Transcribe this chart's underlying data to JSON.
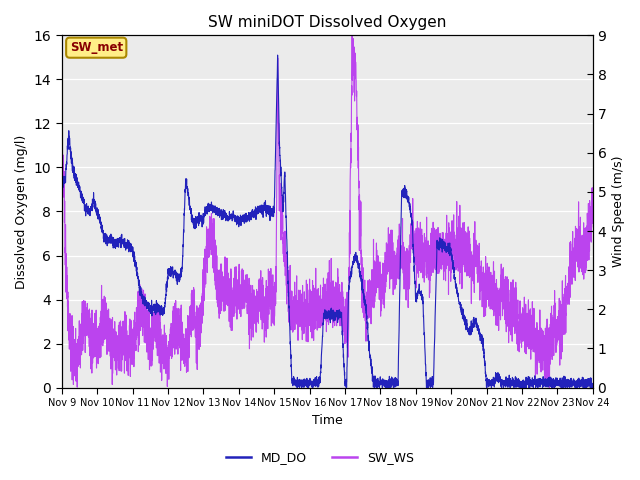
{
  "title": "SW miniDOT Dissolved Oxygen",
  "ylabel_left": "Dissolved Oxygen (mg/l)",
  "ylabel_right": "Wind Speed (m/s)",
  "xlabel": "Time",
  "ylim_left": [
    0,
    16
  ],
  "ylim_right": [
    0.0,
    9.0
  ],
  "yticks_left": [
    0,
    2,
    4,
    6,
    8,
    10,
    12,
    14,
    16
  ],
  "yticks_right": [
    0.0,
    1.0,
    2.0,
    3.0,
    4.0,
    5.0,
    6.0,
    7.0,
    8.0,
    9.0
  ],
  "xtick_labels": [
    "Nov 9",
    "Nov 10",
    "Nov 11",
    "Nov 12",
    "Nov 13",
    "Nov 14",
    "Nov 15",
    "Nov 16",
    "Nov 17",
    "Nov 18",
    "Nov 19",
    "Nov 20",
    "Nov 21",
    "Nov 22",
    "Nov 23",
    "Nov 24"
  ],
  "legend_label_left": "MD_DO",
  "legend_label_right": "SW_WS",
  "annotation_text": "SW_met",
  "color_do": "#2222bb",
  "color_ws": "#bb44ee",
  "bg_color": "#ebebeb",
  "annotation_bg": "#ffee88",
  "annotation_fg": "#880000",
  "figsize": [
    6.4,
    4.8
  ],
  "dpi": 100,
  "do_xp": [
    0,
    0.05,
    0.1,
    0.15,
    0.2,
    0.3,
    0.4,
    0.5,
    0.6,
    0.7,
    0.8,
    0.9,
    1.0,
    1.1,
    1.2,
    1.3,
    1.4,
    1.5,
    1.6,
    1.7,
    1.8,
    1.9,
    2.0,
    2.1,
    2.2,
    2.3,
    2.4,
    2.5,
    2.6,
    2.7,
    2.8,
    2.9,
    3.0,
    3.1,
    3.2,
    3.3,
    3.4,
    3.5,
    3.6,
    3.7,
    3.8,
    3.9,
    4.0,
    4.05,
    4.1,
    4.2,
    4.3,
    4.4,
    4.5,
    4.6,
    4.7,
    4.8,
    4.9,
    5.0,
    5.1,
    5.2,
    5.3,
    5.4,
    5.5,
    5.6,
    5.7,
    5.8,
    5.9,
    6.0,
    6.05,
    6.1,
    6.15,
    6.2,
    6.25,
    6.3,
    6.4,
    6.5,
    6.6,
    6.7,
    6.8,
    6.9,
    7.0,
    7.05,
    7.1,
    7.15,
    7.2,
    7.3,
    7.4,
    7.5,
    7.6,
    7.7,
    7.8,
    7.9,
    8.0,
    8.05,
    8.1,
    8.2,
    8.3,
    8.4,
    8.5,
    8.6,
    8.7,
    8.8,
    8.9,
    9.0,
    9.05,
    9.1,
    9.2,
    9.3,
    9.4,
    9.5,
    9.6,
    9.7,
    9.8,
    9.9,
    10.0,
    10.1,
    10.2,
    10.3,
    10.4,
    10.5,
    10.6,
    10.7,
    10.8,
    10.9,
    11.0,
    11.1,
    11.2,
    11.3,
    11.4,
    11.5,
    11.6,
    11.7,
    11.8,
    11.9,
    12.0,
    12.1,
    12.2,
    12.3,
    12.4,
    12.5,
    12.6,
    12.7,
    12.8,
    12.9,
    13.0,
    13.1,
    13.2,
    13.3,
    13.4,
    13.5,
    13.6,
    13.7,
    13.8,
    13.9,
    14.0,
    14.1,
    14.2,
    14.3,
    14.4,
    14.5,
    14.6,
    14.7,
    14.8,
    14.9,
    15.0
  ],
  "do_yp": [
    9.0,
    9.3,
    9.5,
    10.5,
    11.5,
    10.0,
    9.5,
    9.0,
    8.5,
    8.1,
    8.0,
    8.5,
    8.0,
    7.5,
    6.8,
    6.7,
    6.8,
    6.5,
    6.6,
    6.7,
    6.5,
    6.5,
    6.2,
    5.5,
    4.5,
    4.0,
    3.8,
    3.5,
    3.6,
    3.7,
    3.5,
    3.5,
    5.2,
    5.3,
    5.2,
    5.0,
    5.3,
    9.5,
    8.5,
    7.5,
    7.5,
    7.7,
    7.6,
    8.0,
    8.1,
    8.2,
    8.1,
    8.0,
    7.9,
    7.8,
    7.7,
    7.8,
    7.7,
    7.5,
    7.6,
    7.7,
    7.8,
    7.9,
    8.0,
    8.1,
    8.2,
    8.1,
    8.0,
    8.0,
    11.5,
    15.2,
    11.0,
    9.5,
    8.0,
    9.8,
    4.5,
    0.3,
    0.2,
    0.2,
    0.2,
    0.2,
    0.2,
    0.2,
    0.2,
    0.2,
    0.2,
    0.3,
    3.3,
    3.3,
    3.3,
    3.3,
    3.3,
    3.3,
    0.2,
    0.2,
    4.5,
    5.5,
    6.0,
    5.5,
    4.5,
    3.5,
    1.5,
    0.3,
    0.2,
    0.2,
    0.2,
    0.2,
    0.2,
    0.2,
    0.2,
    0.2,
    8.8,
    8.9,
    8.5,
    7.5,
    4.0,
    4.5,
    4.0,
    0.2,
    0.2,
    0.2,
    6.4,
    6.5,
    6.4,
    6.3,
    6.2,
    5.0,
    4.0,
    3.5,
    3.0,
    2.5,
    2.8,
    3.0,
    2.5,
    2.0,
    0.2,
    0.2,
    0.2,
    0.5,
    0.3,
    0.2,
    0.2,
    0.2,
    0.2,
    0.2,
    0.2,
    0.2,
    0.2,
    0.2,
    0.2,
    0.2,
    0.2,
    0.2,
    0.2,
    0.2,
    0.2,
    0.2,
    0.2,
    0.2,
    0.2,
    0.2,
    0.2,
    0.2,
    0.2,
    0.2,
    0.1
  ],
  "ws_xp": [
    0,
    0.02,
    0.05,
    0.08,
    0.1,
    0.15,
    0.2,
    0.3,
    0.4,
    0.5,
    0.6,
    0.7,
    0.8,
    0.9,
    1.0,
    1.1,
    1.2,
    1.3,
    1.4,
    1.5,
    1.6,
    1.7,
    1.8,
    1.9,
    2.0,
    2.1,
    2.2,
    2.3,
    2.4,
    2.5,
    2.6,
    2.7,
    2.8,
    2.9,
    3.0,
    3.1,
    3.2,
    3.3,
    3.4,
    3.5,
    3.6,
    3.7,
    3.8,
    3.9,
    4.0,
    4.1,
    4.2,
    4.3,
    4.4,
    4.5,
    4.6,
    4.7,
    4.8,
    4.9,
    5.0,
    5.1,
    5.2,
    5.3,
    5.4,
    5.5,
    5.6,
    5.7,
    5.8,
    5.9,
    6.0,
    6.05,
    6.1,
    6.15,
    6.2,
    6.3,
    6.4,
    6.5,
    6.6,
    6.7,
    6.8,
    6.9,
    7.0,
    7.1,
    7.2,
    7.3,
    7.4,
    7.5,
    7.6,
    7.7,
    7.8,
    7.9,
    8.0,
    8.1,
    8.2,
    8.3,
    8.4,
    8.5,
    8.6,
    8.7,
    8.8,
    8.9,
    9.0,
    9.1,
    9.2,
    9.3,
    9.4,
    9.5,
    9.6,
    9.7,
    9.8,
    9.9,
    10.0,
    10.1,
    10.2,
    10.3,
    10.4,
    10.5,
    10.6,
    10.7,
    10.8,
    10.9,
    11.0,
    11.1,
    11.2,
    11.3,
    11.4,
    11.5,
    11.6,
    11.7,
    11.8,
    11.9,
    12.0,
    12.1,
    12.2,
    12.3,
    12.4,
    12.5,
    12.6,
    12.7,
    12.8,
    12.9,
    13.0,
    13.1,
    13.2,
    13.3,
    13.4,
    13.5,
    13.6,
    13.7,
    13.8,
    13.9,
    14.0,
    14.1,
    14.2,
    14.3,
    14.4,
    14.5,
    14.6,
    14.7,
    14.8,
    14.9,
    15.0
  ],
  "ws_yp": [
    5.6,
    5.8,
    5.5,
    4.5,
    3.5,
    2.5,
    1.5,
    1.0,
    0.5,
    1.0,
    1.5,
    1.8,
    1.5,
    1.2,
    1.0,
    1.5,
    1.8,
    1.5,
    1.2,
    1.0,
    1.0,
    1.2,
    1.2,
    1.0,
    1.0,
    1.5,
    2.0,
    2.0,
    1.5,
    1.0,
    1.5,
    1.5,
    1.0,
    1.0,
    0.8,
    1.2,
    1.5,
    1.5,
    1.0,
    0.8,
    1.5,
    2.0,
    1.5,
    1.5,
    2.5,
    3.5,
    4.0,
    3.5,
    2.5,
    2.5,
    2.5,
    2.5,
    2.2,
    2.5,
    2.5,
    2.5,
    2.5,
    2.0,
    2.0,
    2.0,
    2.5,
    2.0,
    2.0,
    2.5,
    2.0,
    2.5,
    8.2,
    5.0,
    4.5,
    3.5,
    2.5,
    2.0,
    2.0,
    2.0,
    1.8,
    2.0,
    1.8,
    2.0,
    2.0,
    2.0,
    2.0,
    2.0,
    2.5,
    2.0,
    2.5,
    2.0,
    1.8,
    1.5,
    8.2,
    8.4,
    5.0,
    2.5,
    2.0,
    2.5,
    2.5,
    3.0,
    2.5,
    2.5,
    3.5,
    3.5,
    3.0,
    3.5,
    3.5,
    3.0,
    3.0,
    4.0,
    3.5,
    3.5,
    3.5,
    3.5,
    3.0,
    3.5,
    3.5,
    3.5,
    3.5,
    3.5,
    3.5,
    3.5,
    3.5,
    3.5,
    3.5,
    3.5,
    3.0,
    3.5,
    3.0,
    2.5,
    2.5,
    2.5,
    2.5,
    2.0,
    2.5,
    2.5,
    2.0,
    2.0,
    2.0,
    1.5,
    1.5,
    1.5,
    1.5,
    1.5,
    1.0,
    1.0,
    1.0,
    1.0,
    1.0,
    1.5,
    1.5,
    1.5,
    2.0,
    2.5,
    3.0,
    3.5,
    3.5,
    3.5,
    3.5,
    4.0,
    4.5
  ]
}
